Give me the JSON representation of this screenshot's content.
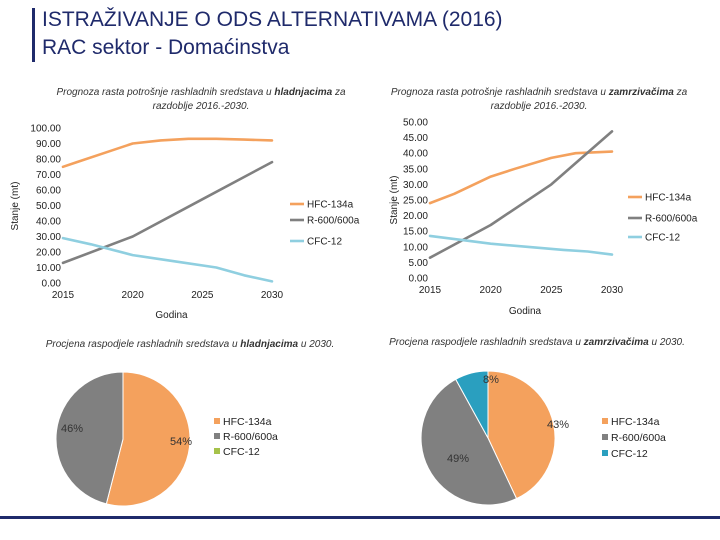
{
  "header": {
    "title_line1": "ISTRAŽIVANJE O ODS ALTERNATIVAMA (2016)",
    "title_line2": "RAC sektor - Domaćinstva"
  },
  "colors": {
    "hfc": "#f4a15d",
    "r600": "#808080",
    "cfc": "#8fcfe0",
    "navy": "#1f2a6b"
  },
  "captions": {
    "left_line_title_a": "Prognoza rasta potrošnje rashladnih sredstava u ",
    "left_line_title_b": "hladnjacima",
    "left_line_title_c": " za razdoblje 2016.-2030.",
    "right_line_title_a": "Prognoza rasta potrošnje rashladnih sredstava u ",
    "right_line_title_b": "zamrzivačima",
    "right_line_title_c": " za razdoblje 2016.-2030.",
    "left_pie_title_a": "Procjena raspodjele rashladnih sredstava u ",
    "left_pie_title_b": "hladnjacima",
    "left_pie_title_c": " u 2030.",
    "right_pie_title_a": "Procjena raspodjele rashladnih sredstava u ",
    "right_pie_title_b": "zamrzivačima",
    "right_pie_title_c": " u 2030."
  },
  "chart_data": [
    {
      "type": "line",
      "title": "Prognoza rasta potrošnje rashladnih sredstava u hladnjacima za razdoblje 2016.-2030.",
      "xlabel": "Godina",
      "ylabel": "Stanje (mt)",
      "x": [
        2015,
        2020,
        2025,
        2030
      ],
      "xlim": [
        2015,
        2030
      ],
      "ylim": [
        0,
        100
      ],
      "yticks": [
        "0.00",
        "10.00",
        "20.00",
        "30.00",
        "40.00",
        "50.00",
        "60.00",
        "70.00",
        "80.00",
        "90.00",
        "100.00"
      ],
      "legend_position": "right",
      "series": [
        {
          "name": "HFC-134a",
          "color": "#f4a15d",
          "x": [
            2015,
            2016,
            2018,
            2020,
            2022,
            2024,
            2026,
            2028,
            2030
          ],
          "values": [
            75,
            78,
            84,
            90,
            92,
            93,
            93,
            92.5,
            92
          ]
        },
        {
          "name": "R-600/600a",
          "color": "#808080",
          "x": [
            2015,
            2020,
            2025,
            2030
          ],
          "values": [
            13,
            30,
            54,
            78
          ]
        },
        {
          "name": "CFC-12",
          "color": "#8fcfe0",
          "x": [
            2015,
            2017,
            2020,
            2023,
            2026,
            2028,
            2030
          ],
          "values": [
            29,
            25,
            18,
            14,
            10,
            5,
            1
          ]
        }
      ]
    },
    {
      "type": "line",
      "title": "Prognoza rasta potrošnje rashladnih sredstava u zamrzivačima za razdoblje 2016.-2030.",
      "xlabel": "Godina",
      "ylabel": "Stanje (mt)",
      "x": [
        2015,
        2020,
        2025,
        2030
      ],
      "xlim": [
        2015,
        2030
      ],
      "ylim": [
        0,
        50
      ],
      "yticks": [
        "0.00",
        "5.00",
        "10.00",
        "15.00",
        "20.00",
        "25.00",
        "30.00",
        "35.00",
        "40.00",
        "45.00",
        "50.00"
      ],
      "legend_position": "right",
      "series": [
        {
          "name": "HFC-134a",
          "color": "#f4a15d",
          "x": [
            2015,
            2017,
            2020,
            2022,
            2025,
            2027,
            2030
          ],
          "values": [
            24,
            27,
            32.5,
            35,
            38.5,
            40,
            40.5
          ]
        },
        {
          "name": "R-600/600a",
          "color": "#808080",
          "x": [
            2015,
            2020,
            2025,
            2030
          ],
          "values": [
            6.5,
            17,
            30,
            47
          ]
        },
        {
          "name": "CFC-12",
          "color": "#8fcfe0",
          "x": [
            2015,
            2018,
            2020,
            2023,
            2026,
            2028,
            2030
          ],
          "values": [
            13.5,
            12,
            11,
            10,
            9,
            8.5,
            7.5
          ]
        }
      ]
    },
    {
      "type": "pie",
      "title": "Procjena raspodjele rashladnih sredstava u hladnjacima u 2030.",
      "labels": [
        "HFC-134a",
        "R-600/600a",
        "CFC-12"
      ],
      "values": [
        54,
        46,
        0
      ],
      "value_labels": [
        "54%",
        "46%",
        ""
      ],
      "colors": [
        "#f4a15d",
        "#808080",
        "#a6c24a"
      ],
      "legend_position": "right"
    },
    {
      "type": "pie",
      "title": "Procjena raspodjele rashladnih sredstava u zamrzivačima u 2030.",
      "labels": [
        "HFC-134a",
        "R-600/600a",
        "CFC-12"
      ],
      "values": [
        43,
        49,
        8
      ],
      "value_labels": [
        "43%",
        "49%",
        "8%"
      ],
      "colors": [
        "#f4a15d",
        "#808080",
        "#2a9fbf"
      ],
      "legend_position": "right"
    }
  ]
}
